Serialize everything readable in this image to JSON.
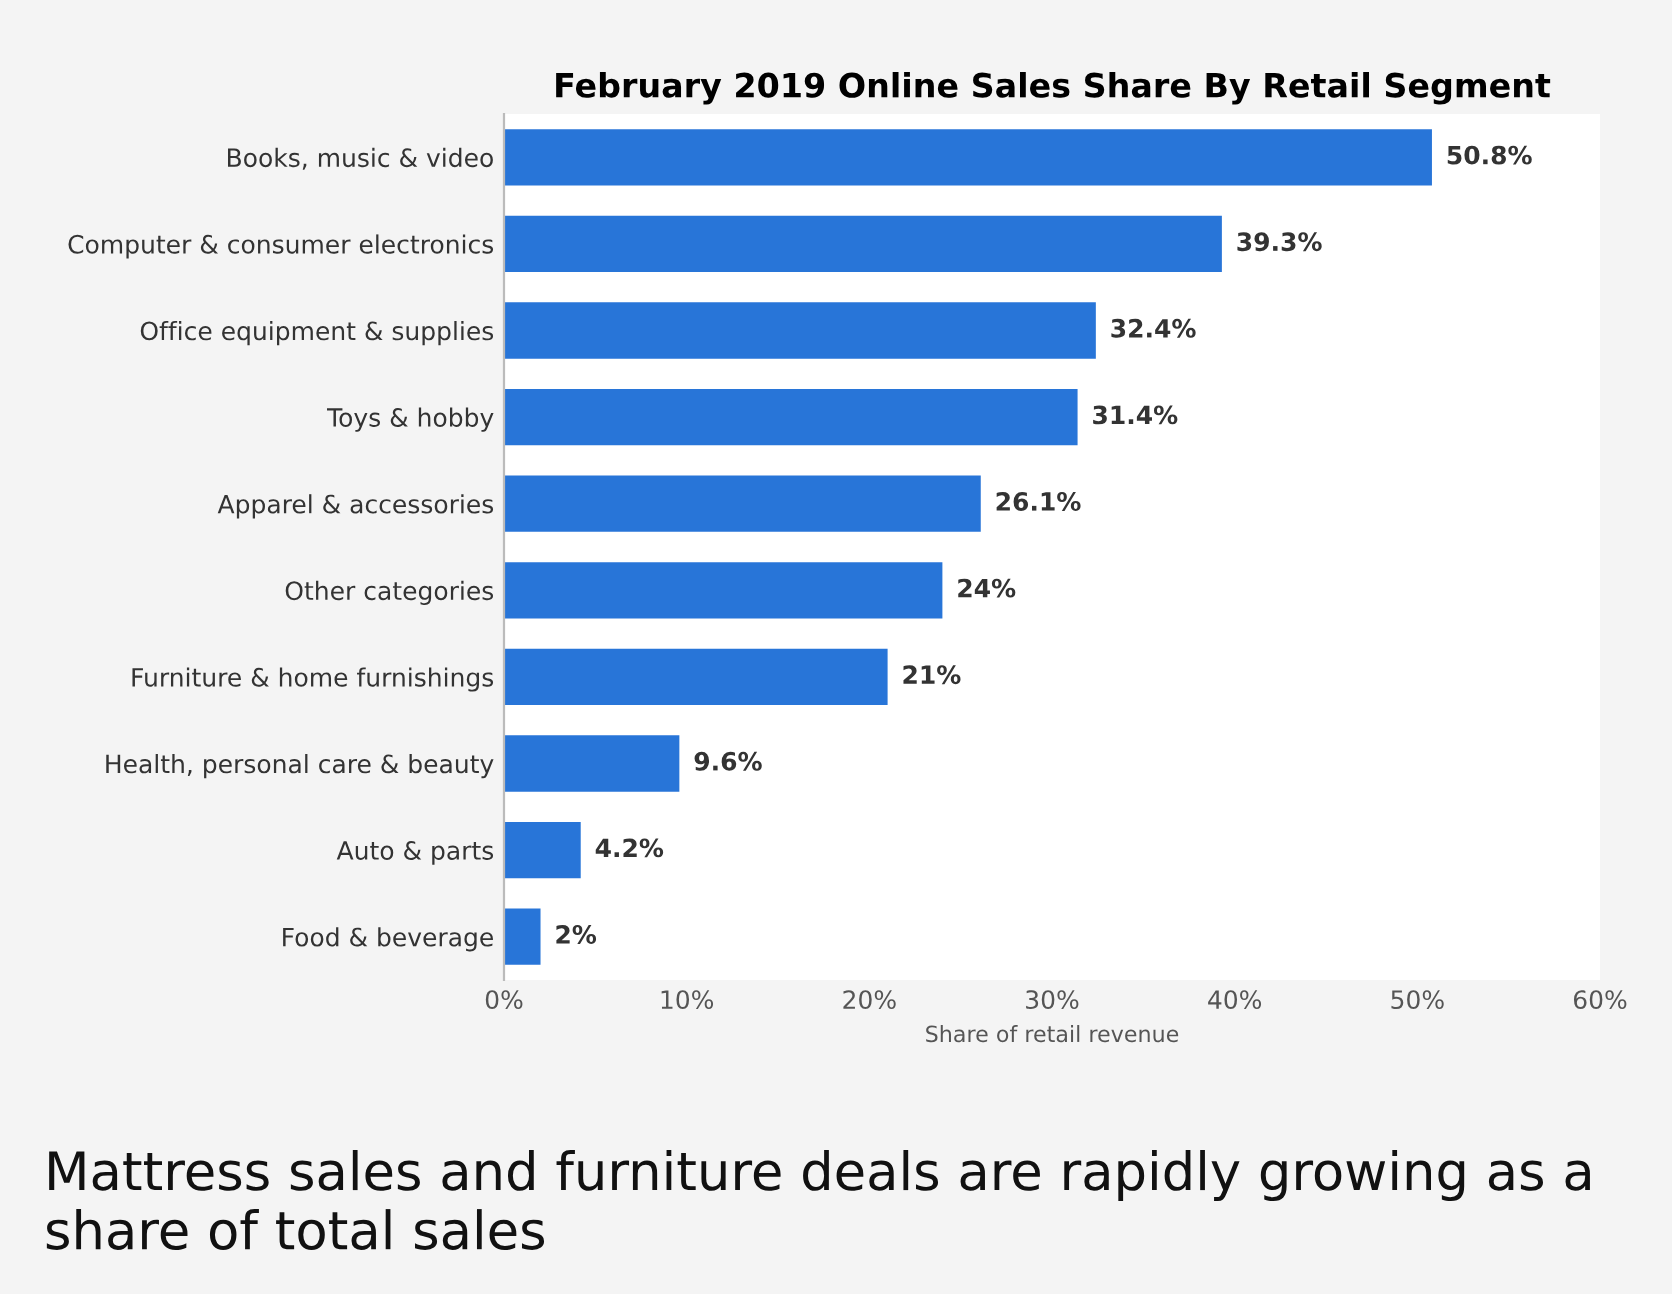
{
  "chart_data": {
    "type": "bar",
    "orientation": "horizontal",
    "title": "February 2019 Online Sales Share By Retail Segment",
    "categories": [
      "Books, music & video",
      "Computer & consumer electronics",
      "Office equipment & supplies",
      "Toys & hobby",
      "Apparel & accessories",
      "Other categories",
      "Furniture & home furnishings",
      "Health, personal care & beauty",
      "Auto & parts",
      "Food & beverage"
    ],
    "values": [
      50.8,
      39.3,
      32.4,
      31.4,
      26.1,
      24,
      21,
      9.6,
      4.2,
      2
    ],
    "value_labels": [
      "50.8%",
      "39.3%",
      "32.4%",
      "31.4%",
      "26.1%",
      "24%",
      "21%",
      "9.6%",
      "4.2%",
      "2%"
    ],
    "color": "#2875d8",
    "xlabel": "Share of retail revenue",
    "xlim": [
      0,
      60
    ],
    "xticks": [
      {
        "value": 0,
        "label": "0%"
      },
      {
        "value": 10,
        "label": "10%"
      },
      {
        "value": 20,
        "label": "20%"
      },
      {
        "value": 30,
        "label": "30%"
      },
      {
        "value": 40,
        "label": "40%"
      },
      {
        "value": 50,
        "label": "50%"
      },
      {
        "value": 60,
        "label": "60%"
      }
    ],
    "grid": false,
    "annotations": [
      "Mattress sales and furniture deals are rapidly growing as a share of total sales"
    ]
  }
}
